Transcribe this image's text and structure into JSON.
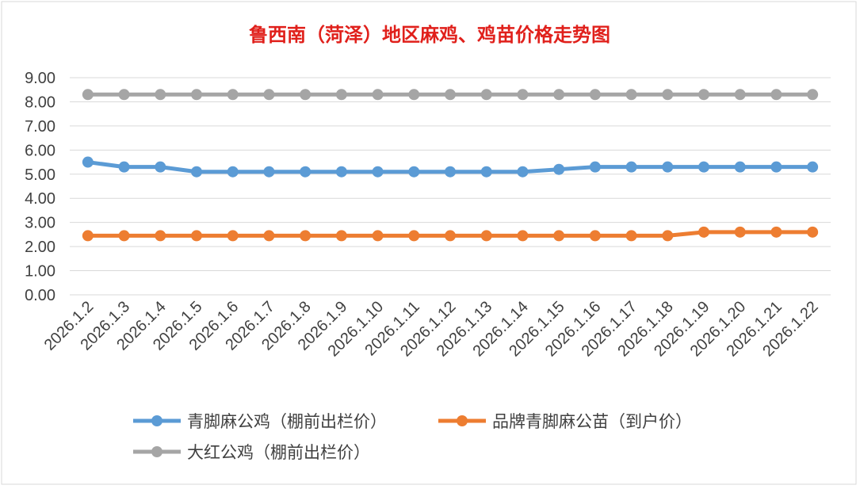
{
  "chart_data": {
    "type": "line",
    "title": "鲁西南（菏泽）地区麻鸡、鸡苗价格走势图",
    "xlabel": "",
    "ylabel": "",
    "ylim": [
      0,
      9
    ],
    "yticks": [
      "0.00",
      "1.00",
      "2.00",
      "3.00",
      "4.00",
      "5.00",
      "6.00",
      "7.00",
      "8.00",
      "9.00"
    ],
    "categories": [
      "2026.1.2",
      "2026.1.3",
      "2026.1.4",
      "2026.1.5",
      "2026.1.6",
      "2026.1.7",
      "2026.1.8",
      "2026.1.9",
      "2026.1.10",
      "2026.1.11",
      "2026.1.12",
      "2026.1.13",
      "2026.1.14",
      "2026.1.15",
      "2026.1.16",
      "2026.1.17",
      "2026.1.18",
      "2026.1.19",
      "2026.1.20",
      "2026.1.21",
      "2026.1.22"
    ],
    "grid": true,
    "legend_position": "bottom",
    "series": [
      {
        "name": "青脚麻公鸡（棚前出栏价）",
        "color": "#5b9bd5",
        "values": [
          5.5,
          5.3,
          5.3,
          5.1,
          5.1,
          5.1,
          5.1,
          5.1,
          5.1,
          5.1,
          5.1,
          5.1,
          5.1,
          5.2,
          5.3,
          5.3,
          5.3,
          5.3,
          5.3,
          5.3,
          5.3
        ]
      },
      {
        "name": "品牌青脚麻公苗（到户价）",
        "color": "#ed7d31",
        "values": [
          2.45,
          2.45,
          2.45,
          2.45,
          2.45,
          2.45,
          2.45,
          2.45,
          2.45,
          2.45,
          2.45,
          2.45,
          2.45,
          2.45,
          2.45,
          2.45,
          2.45,
          2.6,
          2.6,
          2.6,
          2.6
        ]
      },
      {
        "name": "大红公鸡（棚前出栏价）",
        "color": "#a5a5a5",
        "values": [
          8.3,
          8.3,
          8.3,
          8.3,
          8.3,
          8.3,
          8.3,
          8.3,
          8.3,
          8.3,
          8.3,
          8.3,
          8.3,
          8.3,
          8.3,
          8.3,
          8.3,
          8.3,
          8.3,
          8.3,
          8.3
        ]
      }
    ]
  }
}
